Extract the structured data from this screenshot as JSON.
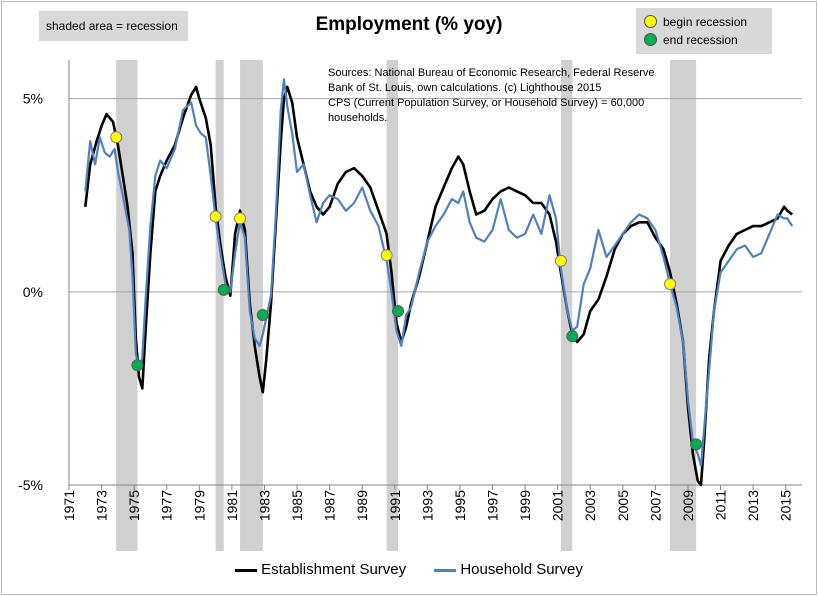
{
  "chart_data": {
    "type": "line",
    "title": "Employment (% yoy)",
    "ylabel": "",
    "xlabel": "",
    "ylim": [
      -5,
      6
    ],
    "xlim": [
      1971,
      2016
    ],
    "y_ticks": [
      {
        "value": 5,
        "label": "5%"
      },
      {
        "value": 0,
        "label": "0%"
      },
      {
        "value": -5,
        "label": "-5%"
      }
    ],
    "x_ticks": [
      "1971",
      "1973",
      "1975",
      "1977",
      "1979",
      "1981",
      "1983",
      "1985",
      "1987",
      "1989",
      "1991",
      "1993",
      "1995",
      "1997",
      "1999",
      "2001",
      "2003",
      "2005",
      "2007",
      "2009",
      "2011",
      "2013",
      "2015"
    ],
    "grid": "horizontal",
    "legend_position": "bottom",
    "recessions": [
      [
        1973.9,
        1975.2
      ],
      [
        1980.0,
        1980.5
      ],
      [
        1981.5,
        1982.9
      ],
      [
        1990.5,
        1991.2
      ],
      [
        2001.2,
        2001.9
      ],
      [
        2007.9,
        2009.5
      ]
    ],
    "begin_recession_points": [
      [
        1973.9,
        4.0
      ],
      [
        1980.0,
        1.95
      ],
      [
        1981.5,
        1.9
      ],
      [
        1990.5,
        0.95
      ],
      [
        2001.2,
        0.8
      ],
      [
        2007.9,
        0.2
      ]
    ],
    "end_recession_points": [
      [
        1975.2,
        -1.9
      ],
      [
        1980.5,
        0.05
      ],
      [
        1982.9,
        -0.6
      ],
      [
        1991.2,
        -0.5
      ],
      [
        2001.9,
        -1.15
      ],
      [
        2009.5,
        -3.95
      ]
    ],
    "series": [
      {
        "name": "Establishment Survey",
        "color": "#000000",
        "points": [
          [
            1972.0,
            2.2
          ],
          [
            1972.3,
            3.3
          ],
          [
            1972.7,
            3.9
          ],
          [
            1973.0,
            4.3
          ],
          [
            1973.3,
            4.6
          ],
          [
            1973.7,
            4.4
          ],
          [
            1974.0,
            3.8
          ],
          [
            1974.3,
            3.0
          ],
          [
            1974.6,
            2.2
          ],
          [
            1974.9,
            1.0
          ],
          [
            1975.1,
            -1.2
          ],
          [
            1975.3,
            -2.2
          ],
          [
            1975.5,
            -2.5
          ],
          [
            1975.7,
            -1.0
          ],
          [
            1976.0,
            1.0
          ],
          [
            1976.3,
            2.6
          ],
          [
            1976.6,
            3.0
          ],
          [
            1977.0,
            3.4
          ],
          [
            1977.5,
            3.8
          ],
          [
            1978.0,
            4.5
          ],
          [
            1978.5,
            5.1
          ],
          [
            1978.8,
            5.3
          ],
          [
            1979.0,
            5.0
          ],
          [
            1979.4,
            4.5
          ],
          [
            1979.7,
            3.8
          ],
          [
            1980.0,
            2.2
          ],
          [
            1980.3,
            1.2
          ],
          [
            1980.6,
            0.4
          ],
          [
            1980.9,
            -0.1
          ],
          [
            1981.2,
            1.5
          ],
          [
            1981.5,
            2.1
          ],
          [
            1981.8,
            1.6
          ],
          [
            1982.1,
            -0.3
          ],
          [
            1982.4,
            -1.4
          ],
          [
            1982.7,
            -2.2
          ],
          [
            1982.9,
            -2.6
          ],
          [
            1983.1,
            -1.8
          ],
          [
            1983.4,
            -0.3
          ],
          [
            1983.7,
            1.8
          ],
          [
            1984.0,
            3.9
          ],
          [
            1984.2,
            5.0
          ],
          [
            1984.4,
            5.3
          ],
          [
            1984.7,
            4.9
          ],
          [
            1985.0,
            4.0
          ],
          [
            1985.4,
            3.3
          ],
          [
            1985.8,
            2.6
          ],
          [
            1986.2,
            2.2
          ],
          [
            1986.6,
            2.0
          ],
          [
            1987.0,
            2.2
          ],
          [
            1987.5,
            2.8
          ],
          [
            1988.0,
            3.1
          ],
          [
            1988.5,
            3.2
          ],
          [
            1989.0,
            3.0
          ],
          [
            1989.5,
            2.7
          ],
          [
            1990.0,
            2.1
          ],
          [
            1990.5,
            1.5
          ],
          [
            1990.8,
            0.5
          ],
          [
            1991.1,
            -0.8
          ],
          [
            1991.4,
            -1.3
          ],
          [
            1991.7,
            -0.9
          ],
          [
            1992.0,
            -0.3
          ],
          [
            1992.5,
            0.4
          ],
          [
            1993.0,
            1.3
          ],
          [
            1993.5,
            2.2
          ],
          [
            1994.0,
            2.7
          ],
          [
            1994.5,
            3.2
          ],
          [
            1994.9,
            3.5
          ],
          [
            1995.2,
            3.3
          ],
          [
            1995.6,
            2.6
          ],
          [
            1996.0,
            2.0
          ],
          [
            1996.5,
            2.1
          ],
          [
            1997.0,
            2.4
          ],
          [
            1997.5,
            2.6
          ],
          [
            1998.0,
            2.7
          ],
          [
            1998.5,
            2.6
          ],
          [
            1999.0,
            2.5
          ],
          [
            1999.5,
            2.3
          ],
          [
            2000.0,
            2.3
          ],
          [
            2000.5,
            2.0
          ],
          [
            2000.9,
            1.3
          ],
          [
            2001.2,
            0.5
          ],
          [
            2001.6,
            -0.5
          ],
          [
            2001.9,
            -1.1
          ],
          [
            2002.2,
            -1.3
          ],
          [
            2002.6,
            -1.1
          ],
          [
            2003.0,
            -0.5
          ],
          [
            2003.5,
            -0.2
          ],
          [
            2004.0,
            0.4
          ],
          [
            2004.5,
            1.1
          ],
          [
            2005.0,
            1.5
          ],
          [
            2005.5,
            1.7
          ],
          [
            2006.0,
            1.8
          ],
          [
            2006.5,
            1.8
          ],
          [
            2007.0,
            1.4
          ],
          [
            2007.5,
            1.1
          ],
          [
            2007.9,
            0.5
          ],
          [
            2008.3,
            -0.3
          ],
          [
            2008.7,
            -1.3
          ],
          [
            2009.0,
            -3.0
          ],
          [
            2009.3,
            -4.2
          ],
          [
            2009.6,
            -4.9
          ],
          [
            2009.8,
            -5.0
          ],
          [
            2010.0,
            -3.8
          ],
          [
            2010.3,
            -1.7
          ],
          [
            2010.6,
            -0.5
          ],
          [
            2011.0,
            0.8
          ],
          [
            2011.5,
            1.2
          ],
          [
            2012.0,
            1.5
          ],
          [
            2012.5,
            1.6
          ],
          [
            2013.0,
            1.7
          ],
          [
            2013.5,
            1.7
          ],
          [
            2014.0,
            1.8
          ],
          [
            2014.5,
            1.9
          ],
          [
            2014.9,
            2.2
          ],
          [
            2015.1,
            2.1
          ],
          [
            2015.4,
            2.0
          ]
        ]
      },
      {
        "name": "Household Survey",
        "color": "#4f81bd",
        "points": [
          [
            1972.0,
            2.6
          ],
          [
            1972.3,
            3.9
          ],
          [
            1972.6,
            3.3
          ],
          [
            1972.9,
            4.0
          ],
          [
            1973.2,
            3.6
          ],
          [
            1973.5,
            3.5
          ],
          [
            1973.8,
            3.7
          ],
          [
            1974.0,
            3.1
          ],
          [
            1974.3,
            2.5
          ],
          [
            1974.7,
            1.6
          ],
          [
            1974.9,
            0.4
          ],
          [
            1975.1,
            -1.6
          ],
          [
            1975.3,
            -2.0
          ],
          [
            1975.5,
            -1.7
          ],
          [
            1975.7,
            -0.2
          ],
          [
            1976.0,
            1.7
          ],
          [
            1976.3,
            3.0
          ],
          [
            1976.6,
            3.4
          ],
          [
            1977.0,
            3.2
          ],
          [
            1977.5,
            3.7
          ],
          [
            1978.0,
            4.7
          ],
          [
            1978.5,
            4.9
          ],
          [
            1978.8,
            4.3
          ],
          [
            1979.1,
            4.1
          ],
          [
            1979.4,
            4.0
          ],
          [
            1979.7,
            3.0
          ],
          [
            1980.0,
            1.9
          ],
          [
            1980.3,
            1.0
          ],
          [
            1980.6,
            0.2
          ],
          [
            1980.9,
            0.0
          ],
          [
            1981.2,
            1.0
          ],
          [
            1981.5,
            1.8
          ],
          [
            1981.8,
            1.4
          ],
          [
            1982.1,
            -0.5
          ],
          [
            1982.4,
            -1.2
          ],
          [
            1982.7,
            -1.4
          ],
          [
            1982.9,
            -1.1
          ],
          [
            1983.1,
            -0.7
          ],
          [
            1983.4,
            -0.1
          ],
          [
            1983.7,
            2.0
          ],
          [
            1984.0,
            4.7
          ],
          [
            1984.2,
            5.5
          ],
          [
            1984.4,
            4.8
          ],
          [
            1984.7,
            4.1
          ],
          [
            1985.0,
            3.1
          ],
          [
            1985.4,
            3.3
          ],
          [
            1985.8,
            2.5
          ],
          [
            1986.2,
            1.8
          ],
          [
            1986.6,
            2.3
          ],
          [
            1987.0,
            2.5
          ],
          [
            1987.5,
            2.4
          ],
          [
            1988.0,
            2.1
          ],
          [
            1988.5,
            2.3
          ],
          [
            1989.0,
            2.7
          ],
          [
            1989.5,
            2.1
          ],
          [
            1990.0,
            1.7
          ],
          [
            1990.5,
            0.8
          ],
          [
            1990.8,
            0.0
          ],
          [
            1991.1,
            -1.0
          ],
          [
            1991.4,
            -1.4
          ],
          [
            1991.7,
            -0.6
          ],
          [
            1992.0,
            -0.4
          ],
          [
            1992.5,
            0.5
          ],
          [
            1993.0,
            1.3
          ],
          [
            1993.5,
            1.7
          ],
          [
            1994.0,
            2.0
          ],
          [
            1994.5,
            2.4
          ],
          [
            1994.9,
            2.3
          ],
          [
            1995.2,
            2.6
          ],
          [
            1995.6,
            1.8
          ],
          [
            1996.0,
            1.4
          ],
          [
            1996.5,
            1.3
          ],
          [
            1997.0,
            1.6
          ],
          [
            1997.5,
            2.4
          ],
          [
            1998.0,
            1.6
          ],
          [
            1998.5,
            1.4
          ],
          [
            1999.0,
            1.5
          ],
          [
            1999.5,
            2.0
          ],
          [
            2000.0,
            1.5
          ],
          [
            2000.5,
            2.5
          ],
          [
            2000.9,
            1.9
          ],
          [
            2001.2,
            0.6
          ],
          [
            2001.6,
            -0.5
          ],
          [
            2001.9,
            -1.0
          ],
          [
            2002.2,
            -0.9
          ],
          [
            2002.6,
            0.2
          ],
          [
            2003.0,
            0.6
          ],
          [
            2003.5,
            1.6
          ],
          [
            2004.0,
            0.9
          ],
          [
            2004.5,
            1.2
          ],
          [
            2005.0,
            1.5
          ],
          [
            2005.5,
            1.8
          ],
          [
            2006.0,
            2.0
          ],
          [
            2006.5,
            1.9
          ],
          [
            2007.0,
            1.6
          ],
          [
            2007.5,
            0.9
          ],
          [
            2007.9,
            0.2
          ],
          [
            2008.3,
            -0.4
          ],
          [
            2008.7,
            -1.3
          ],
          [
            2009.0,
            -2.8
          ],
          [
            2009.3,
            -3.9
          ],
          [
            2009.6,
            -4.2
          ],
          [
            2009.8,
            -4.5
          ],
          [
            2010.0,
            -3.5
          ],
          [
            2010.3,
            -2.0
          ],
          [
            2010.6,
            -0.5
          ],
          [
            2011.0,
            0.5
          ],
          [
            2011.5,
            0.8
          ],
          [
            2012.0,
            1.1
          ],
          [
            2012.5,
            1.2
          ],
          [
            2013.0,
            0.9
          ],
          [
            2013.5,
            1.0
          ],
          [
            2014.0,
            1.5
          ],
          [
            2014.5,
            2.0
          ],
          [
            2014.9,
            1.9
          ],
          [
            2015.1,
            1.9
          ],
          [
            2015.4,
            1.7
          ]
        ]
      }
    ]
  },
  "notes": {
    "recession_key": "shaded area = recession",
    "begin_label": "begin recession",
    "end_label": "end recession",
    "begin_color": "#ffff00",
    "end_color": "#00b050",
    "recession_fill": "#d0d0d0",
    "sources_lines": [
      "Sources: National Bureau of Economic Research, Federal Reserve",
      "Bank of St. Louis, own calculations. (c) Lighthouse 2015",
      "CPS (Current Population Survey, or Household Survey) = 60,000",
      "households."
    ]
  }
}
